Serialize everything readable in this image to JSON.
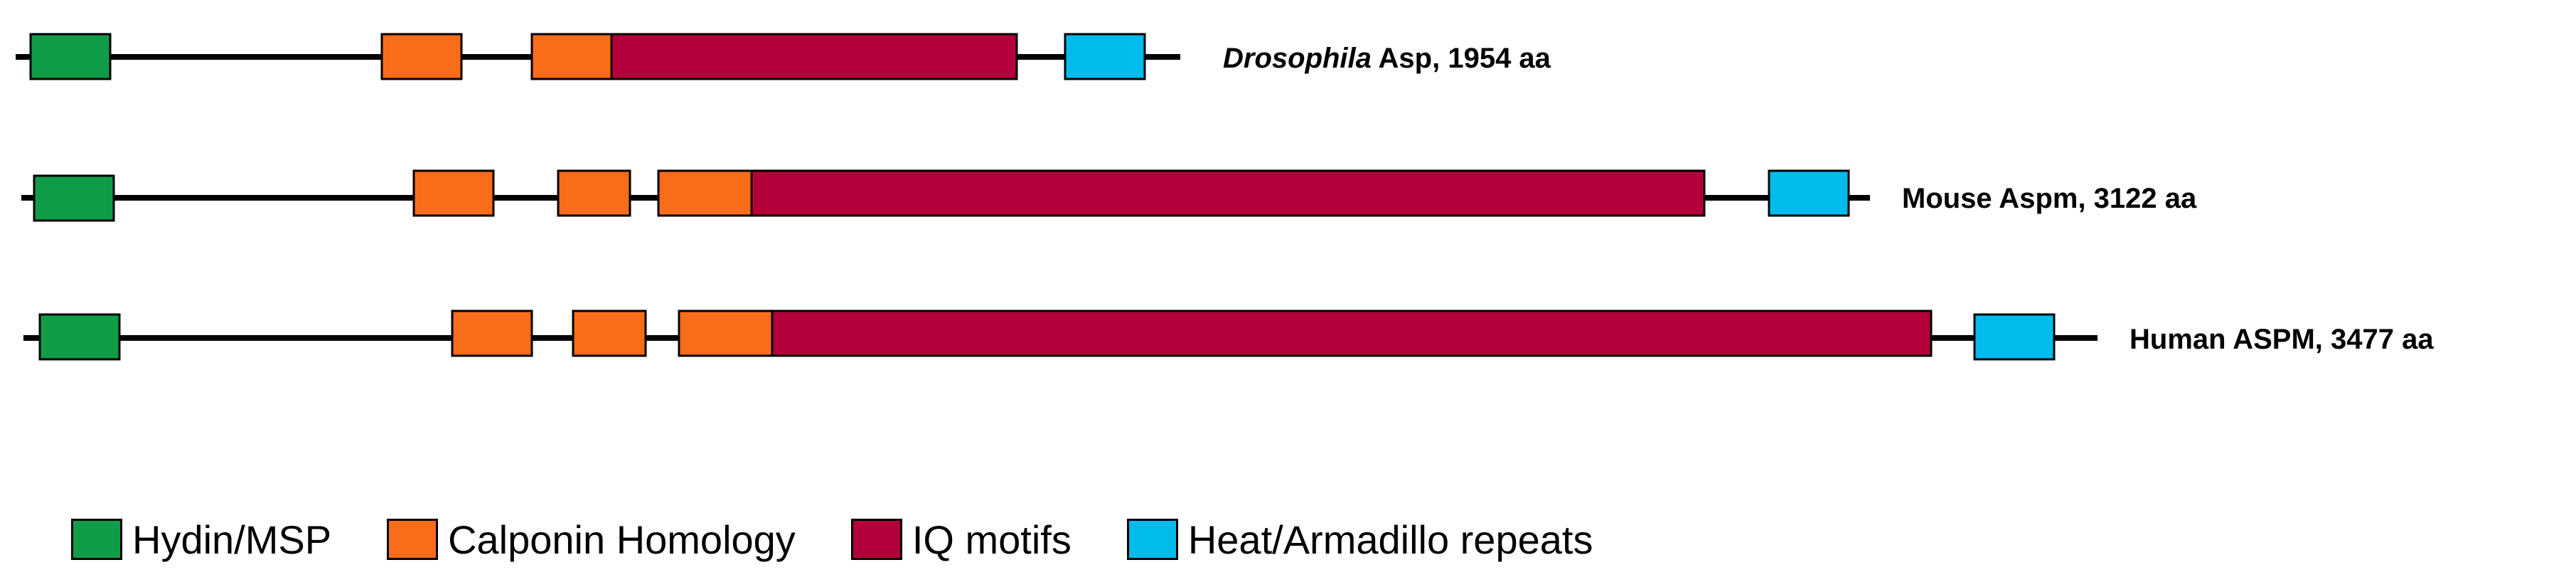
{
  "colors": {
    "hydin": "#119d48",
    "calponin": "#f96c1a",
    "iq": "#b4003a",
    "heat": "#00bbec"
  },
  "proteins": [
    {
      "name_italic": "Drosophila",
      "name": " Asp, 1954 aa",
      "domains": [
        {
          "type": "hydin",
          "icon": "hydin-msp-domain"
        },
        {
          "type": "calponin",
          "icon": "calponin-homology-domain"
        },
        {
          "type": "calponin",
          "icon": "calponin-homology-domain"
        },
        {
          "type": "iq",
          "icon": "iq-motifs-domain"
        },
        {
          "type": "heat",
          "icon": "heat-armadillo-domain"
        }
      ]
    },
    {
      "name_italic": "",
      "name": "Mouse Aspm, 3122 aa",
      "domains": [
        {
          "type": "hydin",
          "icon": "hydin-msp-domain"
        },
        {
          "type": "calponin",
          "icon": "calponin-homology-domain"
        },
        {
          "type": "calponin",
          "icon": "calponin-homology-domain"
        },
        {
          "type": "calponin",
          "icon": "calponin-homology-domain"
        },
        {
          "type": "iq",
          "icon": "iq-motifs-domain"
        },
        {
          "type": "heat",
          "icon": "heat-armadillo-domain"
        }
      ]
    },
    {
      "name_italic": "",
      "name": "Human ASPM, 3477 aa",
      "domains": [
        {
          "type": "hydin",
          "icon": "hydin-msp-domain"
        },
        {
          "type": "calponin",
          "icon": "calponin-homology-domain"
        },
        {
          "type": "calponin",
          "icon": "calponin-homology-domain"
        },
        {
          "type": "calponin",
          "icon": "calponin-homology-domain"
        },
        {
          "type": "iq",
          "icon": "iq-motifs-domain"
        },
        {
          "type": "heat",
          "icon": "heat-armadillo-domain"
        }
      ]
    }
  ],
  "legend": [
    {
      "type": "hydin",
      "label": "Hydin/MSP"
    },
    {
      "type": "calponin",
      "label": "Calponin Homology"
    },
    {
      "type": "iq",
      "label": "IQ motifs"
    },
    {
      "type": "heat",
      "label": "Heat/Armadillo repeats"
    }
  ]
}
